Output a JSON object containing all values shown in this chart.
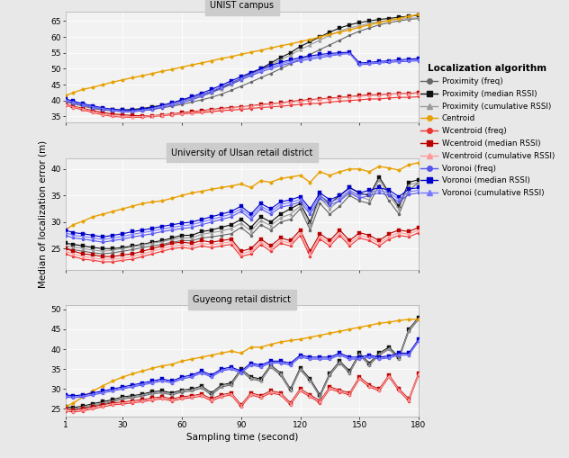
{
  "title": "Localization algorithm",
  "ylabel": "Median of localization error (m)",
  "xlabel": "Sampling time (second)",
  "subplots": [
    "UNIST campus",
    "University of Ulsan retail district",
    "Guyeong retail district"
  ],
  "x": [
    1,
    5,
    10,
    15,
    20,
    25,
    30,
    35,
    40,
    45,
    50,
    55,
    60,
    65,
    70,
    75,
    80,
    85,
    90,
    95,
    100,
    105,
    110,
    115,
    120,
    125,
    130,
    135,
    140,
    145,
    150,
    155,
    160,
    165,
    170,
    175,
    180
  ],
  "series": [
    {
      "label": "Proximity (freq)",
      "color": "#666666",
      "marker": "o",
      "lw": 0.8,
      "ms": 2.2
    },
    {
      "label": "Proximity (median RSSI)",
      "color": "#111111",
      "marker": "s",
      "lw": 0.8,
      "ms": 2.2
    },
    {
      "label": "Proximity (cumulative RSSI)",
      "color": "#999999",
      "marker": "^",
      "lw": 0.8,
      "ms": 2.5
    },
    {
      "label": "Centroid",
      "color": "#E8A000",
      "marker": "o",
      "lw": 1.0,
      "ms": 2.5
    },
    {
      "label": "Wcentroid (freq)",
      "color": "#EE3333",
      "marker": "o",
      "lw": 0.8,
      "ms": 2.2
    },
    {
      "label": "Wcentroid (median RSSI)",
      "color": "#BB0000",
      "marker": "s",
      "lw": 0.8,
      "ms": 2.2
    },
    {
      "label": "Wcentroid (cumulative RSSI)",
      "color": "#FF9999",
      "marker": "^",
      "lw": 0.8,
      "ms": 2.5
    },
    {
      "label": "Voronoi (freq)",
      "color": "#5555EE",
      "marker": "o",
      "lw": 0.8,
      "ms": 2.2
    },
    {
      "label": "Voronoi (median RSSI)",
      "color": "#0000CC",
      "marker": "s",
      "lw": 0.8,
      "ms": 2.2
    },
    {
      "label": "Voronoi (cumulative RSSI)",
      "color": "#7777FF",
      "marker": "^",
      "lw": 0.8,
      "ms": 2.5
    }
  ],
  "data": {
    "UNIST campus": [
      [
        39.5,
        39.0,
        38.2,
        37.5,
        37.0,
        36.8,
        36.5,
        36.5,
        36.8,
        37.2,
        37.7,
        38.2,
        38.8,
        39.5,
        40.2,
        41.0,
        42.0,
        43.2,
        44.5,
        45.8,
        47.2,
        48.5,
        50.0,
        51.5,
        53.0,
        54.5,
        56.0,
        57.5,
        59.0,
        60.5,
        61.8,
        62.8,
        63.8,
        64.5,
        65.0,
        65.5,
        65.8
      ],
      [
        40.0,
        39.5,
        38.8,
        38.0,
        37.5,
        37.2,
        37.0,
        37.2,
        37.5,
        38.0,
        38.5,
        39.2,
        40.0,
        40.8,
        41.8,
        42.8,
        44.0,
        45.5,
        47.0,
        48.5,
        50.0,
        51.8,
        53.5,
        55.0,
        57.0,
        58.5,
        60.0,
        61.5,
        62.8,
        63.8,
        64.5,
        65.0,
        65.5,
        65.8,
        66.2,
        66.5,
        66.8
      ],
      [
        39.8,
        39.2,
        38.5,
        37.8,
        37.2,
        36.9,
        36.7,
        36.8,
        37.2,
        37.7,
        38.2,
        38.9,
        39.7,
        40.5,
        41.5,
        42.5,
        43.7,
        45.0,
        46.5,
        48.0,
        49.5,
        51.2,
        52.8,
        54.3,
        56.0,
        57.5,
        59.0,
        60.5,
        61.8,
        62.8,
        63.5,
        64.2,
        64.8,
        65.2,
        65.5,
        65.8,
        66.0
      ],
      [
        41.5,
        42.5,
        43.5,
        44.2,
        45.0,
        45.8,
        46.5,
        47.2,
        47.8,
        48.5,
        49.2,
        49.8,
        50.5,
        51.2,
        51.8,
        52.5,
        53.2,
        53.8,
        54.5,
        55.2,
        55.8,
        56.5,
        57.2,
        57.8,
        58.5,
        59.2,
        60.0,
        60.8,
        61.5,
        62.2,
        63.0,
        63.8,
        64.5,
        65.2,
        65.8,
        66.5,
        67.0
      ],
      [
        38.5,
        37.8,
        37.0,
        36.2,
        35.5,
        35.0,
        34.8,
        34.7,
        34.8,
        35.0,
        35.2,
        35.5,
        35.8,
        36.0,
        36.2,
        36.5,
        36.8,
        37.0,
        37.2,
        37.5,
        37.8,
        38.0,
        38.2,
        38.5,
        38.8,
        39.0,
        39.2,
        39.5,
        39.8,
        40.0,
        40.2,
        40.5,
        40.5,
        40.8,
        41.0,
        41.0,
        41.2
      ],
      [
        38.8,
        38.2,
        37.5,
        36.8,
        36.2,
        35.8,
        35.5,
        35.3,
        35.2,
        35.2,
        35.5,
        35.8,
        36.2,
        36.5,
        36.8,
        37.2,
        37.5,
        37.8,
        38.0,
        38.3,
        38.8,
        39.0,
        39.3,
        39.7,
        40.0,
        40.3,
        40.5,
        40.8,
        41.0,
        41.2,
        41.5,
        41.8,
        41.8,
        42.0,
        42.2,
        42.2,
        42.5
      ],
      [
        38.7,
        38.0,
        37.3,
        36.5,
        35.8,
        35.3,
        35.0,
        34.9,
        35.0,
        35.2,
        35.4,
        35.7,
        36.0,
        36.3,
        36.6,
        37.0,
        37.3,
        37.6,
        37.9,
        38.2,
        38.6,
        38.9,
        39.2,
        39.5,
        39.8,
        40.1,
        40.4,
        40.6,
        40.9,
        41.1,
        41.3,
        41.6,
        41.6,
        41.9,
        42.1,
        42.1,
        42.3
      ],
      [
        40.0,
        39.2,
        38.5,
        37.8,
        37.2,
        36.8,
        36.5,
        36.5,
        36.8,
        37.2,
        37.8,
        38.5,
        39.3,
        40.2,
        41.3,
        42.5,
        43.8,
        45.2,
        46.5,
        47.8,
        49.0,
        50.0,
        51.0,
        51.8,
        52.5,
        53.0,
        53.5,
        54.0,
        54.5,
        54.8,
        51.2,
        51.5,
        51.8,
        52.0,
        52.2,
        52.3,
        52.5
      ],
      [
        40.5,
        39.8,
        39.0,
        38.3,
        37.7,
        37.2,
        37.0,
        37.0,
        37.3,
        37.8,
        38.5,
        39.3,
        40.2,
        41.2,
        42.3,
        43.5,
        44.8,
        46.2,
        47.5,
        48.8,
        50.0,
        51.0,
        52.0,
        52.8,
        53.5,
        54.0,
        54.5,
        54.8,
        55.0,
        55.2,
        51.8,
        52.0,
        52.3,
        52.5,
        52.8,
        53.0,
        53.2
      ],
      [
        40.2,
        39.5,
        38.8,
        38.0,
        37.5,
        37.0,
        36.7,
        36.7,
        37.0,
        37.5,
        38.2,
        39.0,
        39.8,
        40.8,
        41.8,
        43.0,
        44.3,
        45.7,
        47.0,
        48.3,
        49.5,
        50.5,
        51.5,
        52.3,
        53.0,
        53.5,
        54.0,
        54.3,
        54.6,
        54.8,
        51.5,
        51.8,
        52.0,
        52.3,
        52.5,
        52.7,
        52.8
      ]
    ],
    "University of Ulsan retail district": [
      [
        25.0,
        24.8,
        24.5,
        24.2,
        24.0,
        24.2,
        24.5,
        24.8,
        25.2,
        25.5,
        25.8,
        26.2,
        26.5,
        26.5,
        27.0,
        27.2,
        27.5,
        27.8,
        29.0,
        27.5,
        29.5,
        28.5,
        30.0,
        30.5,
        32.5,
        28.5,
        33.5,
        31.5,
        33.0,
        35.0,
        34.0,
        33.5,
        37.0,
        34.0,
        31.5,
        36.0,
        37.5
      ],
      [
        26.0,
        25.8,
        25.5,
        25.2,
        25.0,
        25.0,
        25.2,
        25.5,
        25.8,
        26.2,
        26.5,
        27.0,
        27.5,
        27.5,
        28.2,
        28.5,
        29.0,
        29.5,
        30.5,
        29.0,
        31.0,
        30.0,
        31.5,
        32.5,
        33.5,
        30.0,
        35.0,
        33.5,
        35.0,
        36.5,
        35.5,
        35.0,
        38.5,
        35.5,
        33.0,
        37.5,
        38.0
      ],
      [
        25.5,
        25.3,
        25.0,
        24.7,
        24.5,
        24.7,
        25.0,
        25.3,
        25.7,
        26.0,
        26.3,
        26.7,
        27.0,
        27.0,
        27.7,
        28.0,
        28.3,
        28.8,
        29.8,
        28.3,
        30.3,
        29.3,
        30.8,
        31.5,
        33.0,
        29.5,
        34.5,
        32.5,
        34.2,
        35.8,
        34.8,
        34.2,
        38.0,
        35.0,
        32.5,
        37.0,
        37.5
      ],
      [
        28.5,
        29.5,
        30.2,
        31.0,
        31.5,
        32.0,
        32.5,
        33.0,
        33.5,
        33.8,
        34.0,
        34.5,
        35.0,
        35.5,
        35.8,
        36.2,
        36.5,
        36.8,
        37.2,
        36.5,
        37.8,
        37.5,
        38.2,
        38.5,
        38.8,
        37.5,
        39.5,
        38.8,
        39.5,
        40.0,
        40.0,
        39.5,
        40.5,
        40.2,
        39.8,
        40.8,
        41.2
      ],
      [
        24.0,
        23.5,
        23.0,
        22.8,
        22.5,
        22.5,
        22.8,
        23.0,
        23.5,
        24.0,
        24.5,
        25.0,
        25.2,
        25.0,
        25.5,
        25.2,
        25.5,
        25.8,
        23.5,
        24.0,
        25.8,
        24.5,
        26.0,
        25.5,
        27.5,
        23.5,
        26.8,
        25.5,
        27.5,
        25.5,
        27.0,
        26.5,
        25.5,
        26.8,
        27.5,
        27.2,
        28.0
      ],
      [
        25.0,
        24.5,
        24.0,
        23.8,
        23.5,
        23.5,
        23.8,
        24.0,
        24.5,
        25.0,
        25.5,
        26.0,
        26.2,
        26.0,
        26.5,
        26.2,
        26.5,
        26.8,
        24.5,
        25.0,
        26.8,
        25.5,
        27.0,
        26.5,
        28.5,
        24.5,
        27.8,
        26.5,
        28.5,
        26.5,
        28.0,
        27.5,
        26.5,
        27.8,
        28.5,
        28.2,
        29.0
      ],
      [
        24.5,
        24.0,
        23.5,
        23.2,
        23.0,
        23.0,
        23.2,
        23.5,
        24.0,
        24.5,
        25.0,
        25.5,
        25.7,
        25.5,
        26.0,
        25.7,
        26.0,
        26.3,
        24.0,
        24.5,
        26.3,
        25.0,
        26.5,
        26.0,
        28.0,
        24.0,
        27.3,
        26.0,
        28.0,
        26.0,
        27.5,
        27.0,
        26.0,
        27.3,
        28.0,
        27.7,
        28.5
      ],
      [
        27.5,
        27.0,
        26.8,
        26.5,
        26.2,
        26.5,
        26.8,
        27.2,
        27.5,
        27.8,
        28.2,
        28.5,
        28.8,
        29.0,
        29.5,
        30.0,
        30.5,
        31.0,
        32.0,
        30.5,
        32.5,
        31.5,
        32.8,
        33.2,
        33.8,
        31.5,
        34.5,
        33.2,
        34.0,
        35.5,
        34.5,
        35.0,
        35.5,
        35.0,
        33.8,
        35.2,
        35.5
      ],
      [
        28.5,
        28.0,
        27.8,
        27.5,
        27.2,
        27.5,
        27.8,
        28.2,
        28.5,
        28.8,
        29.2,
        29.5,
        29.8,
        30.0,
        30.5,
        31.0,
        31.5,
        32.0,
        33.0,
        31.5,
        33.5,
        32.5,
        33.8,
        34.2,
        34.8,
        32.5,
        35.5,
        34.2,
        35.0,
        36.5,
        35.5,
        36.0,
        36.5,
        36.0,
        34.8,
        36.2,
        36.5
      ],
      [
        28.0,
        27.5,
        27.3,
        27.0,
        26.7,
        27.0,
        27.3,
        27.7,
        28.0,
        28.3,
        28.7,
        29.0,
        29.3,
        29.5,
        30.0,
        30.5,
        31.0,
        31.5,
        32.5,
        31.0,
        33.0,
        32.0,
        33.3,
        33.7,
        34.3,
        32.0,
        35.0,
        33.7,
        34.5,
        36.0,
        35.0,
        35.5,
        36.0,
        35.5,
        34.3,
        35.7,
        36.0
      ]
    ],
    "Guyeong retail district": [
      [
        25.0,
        24.8,
        25.2,
        25.8,
        26.2,
        26.8,
        27.5,
        27.8,
        28.2,
        28.8,
        29.0,
        28.5,
        29.2,
        29.5,
        30.2,
        28.5,
        30.5,
        31.0,
        34.5,
        32.5,
        32.0,
        35.5,
        33.5,
        29.5,
        34.8,
        32.0,
        28.0,
        33.5,
        36.5,
        34.0,
        38.5,
        36.0,
        38.5,
        40.0,
        37.5,
        44.5,
        47.5
      ],
      [
        25.5,
        25.3,
        25.7,
        26.3,
        26.8,
        27.3,
        28.0,
        28.3,
        28.7,
        29.3,
        29.5,
        29.0,
        29.7,
        30.0,
        30.7,
        29.0,
        31.0,
        31.5,
        35.0,
        33.0,
        32.5,
        36.0,
        34.0,
        30.0,
        35.3,
        32.5,
        28.5,
        34.0,
        37.0,
        34.5,
        39.0,
        36.5,
        39.0,
        40.5,
        38.0,
        45.0,
        48.0
      ],
      [
        25.2,
        25.0,
        25.5,
        26.0,
        26.5,
        27.0,
        27.8,
        28.0,
        28.5,
        29.0,
        29.2,
        28.7,
        29.5,
        29.8,
        30.5,
        28.8,
        30.8,
        31.2,
        34.8,
        32.8,
        32.2,
        35.8,
        33.8,
        29.8,
        35.0,
        32.2,
        28.2,
        33.8,
        36.8,
        34.2,
        38.8,
        36.2,
        38.8,
        40.2,
        37.8,
        44.8,
        47.8
      ],
      [
        25.5,
        26.5,
        28.0,
        29.5,
        30.8,
        32.0,
        33.0,
        33.8,
        34.5,
        35.2,
        35.8,
        36.2,
        37.0,
        37.5,
        38.0,
        38.5,
        39.0,
        39.5,
        39.0,
        40.5,
        40.5,
        41.2,
        41.8,
        42.2,
        42.5,
        43.0,
        43.5,
        44.0,
        44.5,
        45.0,
        45.5,
        46.0,
        46.5,
        46.8,
        47.2,
        47.5,
        47.5
      ],
      [
        24.5,
        24.2,
        24.5,
        25.0,
        25.5,
        26.0,
        26.2,
        26.5,
        26.8,
        27.2,
        27.5,
        27.0,
        27.5,
        27.8,
        28.2,
        27.0,
        28.0,
        28.5,
        25.5,
        28.5,
        27.8,
        29.0,
        28.5,
        26.0,
        29.5,
        28.0,
        26.5,
        30.0,
        29.2,
        28.5,
        32.5,
        30.5,
        29.5,
        33.0,
        29.5,
        27.0,
        33.5
      ],
      [
        25.0,
        24.7,
        25.0,
        25.5,
        26.0,
        26.5,
        26.7,
        27.0,
        27.3,
        27.7,
        28.0,
        27.5,
        28.0,
        28.3,
        28.7,
        27.5,
        28.5,
        29.0,
        26.0,
        29.0,
        28.3,
        29.5,
        29.0,
        26.5,
        30.0,
        28.5,
        27.0,
        30.5,
        29.7,
        29.0,
        33.0,
        31.0,
        30.0,
        33.5,
        30.0,
        27.5,
        34.0
      ],
      [
        24.8,
        24.5,
        24.8,
        25.3,
        25.8,
        26.3,
        26.5,
        26.8,
        27.1,
        27.5,
        27.8,
        27.3,
        27.8,
        28.1,
        28.5,
        27.3,
        28.3,
        28.8,
        25.8,
        28.8,
        28.1,
        29.3,
        28.8,
        26.3,
        29.8,
        28.3,
        26.8,
        30.3,
        29.5,
        28.8,
        32.8,
        30.8,
        29.8,
        33.3,
        29.8,
        27.3,
        33.8
      ],
      [
        28.0,
        27.8,
        28.0,
        28.5,
        29.0,
        29.5,
        30.0,
        30.5,
        31.0,
        31.5,
        32.0,
        31.5,
        32.5,
        33.0,
        34.0,
        33.0,
        34.5,
        35.0,
        34.0,
        36.0,
        35.5,
        36.5,
        36.5,
        36.0,
        38.0,
        37.5,
        37.5,
        37.5,
        38.5,
        37.5,
        37.5,
        38.0,
        37.5,
        37.8,
        38.5,
        38.5,
        42.0
      ],
      [
        28.5,
        28.3,
        28.5,
        29.0,
        29.5,
        30.0,
        30.5,
        31.0,
        31.5,
        32.0,
        32.5,
        32.0,
        33.0,
        33.5,
        34.5,
        33.5,
        35.0,
        35.5,
        34.5,
        36.5,
        36.0,
        37.0,
        37.0,
        36.5,
        38.5,
        38.0,
        38.0,
        38.0,
        39.0,
        38.0,
        38.0,
        38.5,
        38.0,
        38.3,
        39.0,
        39.0,
        42.5
      ],
      [
        28.2,
        28.0,
        28.2,
        28.7,
        29.2,
        29.7,
        30.2,
        30.7,
        31.2,
        31.7,
        32.2,
        31.7,
        32.7,
        33.2,
        34.2,
        33.2,
        34.7,
        35.2,
        34.2,
        36.2,
        35.7,
        36.7,
        36.7,
        36.2,
        38.2,
        37.7,
        37.7,
        37.7,
        38.7,
        37.7,
        37.7,
        38.2,
        37.7,
        38.0,
        38.7,
        38.7,
        42.2
      ]
    ]
  },
  "ylims": {
    "UNIST campus": [
      33,
      68
    ],
    "University of Ulsan retail district": [
      21,
      42
    ],
    "Guyeong retail district": [
      23,
      51
    ]
  },
  "yticks": {
    "UNIST campus": [
      35,
      40,
      45,
      50,
      55,
      60,
      65
    ],
    "University of Ulsan retail district": [
      25,
      30,
      35,
      40
    ],
    "Guyeong retail district": [
      25,
      30,
      35,
      40,
      45,
      50
    ]
  },
  "bg_color": "#E8E8E8",
  "panel_bg": "#F2F2F2",
  "title_bar_color": "#CCCCCC"
}
